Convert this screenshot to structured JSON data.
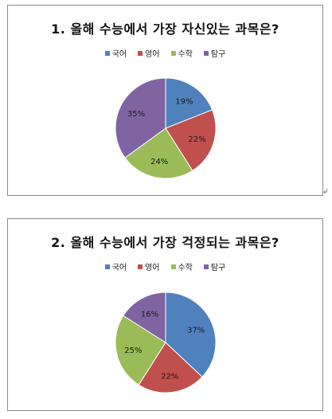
{
  "colors": {
    "국어": "#4f81bd",
    "영어": "#c0504d",
    "수학": "#9bbb59",
    "탐구": "#8064a2"
  },
  "chart_data": [
    {
      "type": "pie",
      "title": "1. 올해 수능에서 가장 자신있는 과목은?",
      "legend_position": "top",
      "categories": [
        "국어",
        "영어",
        "수학",
        "탐구"
      ],
      "values": [
        19,
        22,
        24,
        35
      ],
      "labels": [
        "19%",
        "22%",
        "24%",
        "35%"
      ]
    },
    {
      "type": "pie",
      "title": "2. 올해 수능에서 가장 걱정되는 과목은?",
      "legend_position": "top",
      "categories": [
        "국어",
        "영어",
        "수학",
        "탐구"
      ],
      "values": [
        37,
        22,
        25,
        16
      ],
      "labels": [
        "37%",
        "22%",
        "25%",
        "16%"
      ]
    }
  ]
}
